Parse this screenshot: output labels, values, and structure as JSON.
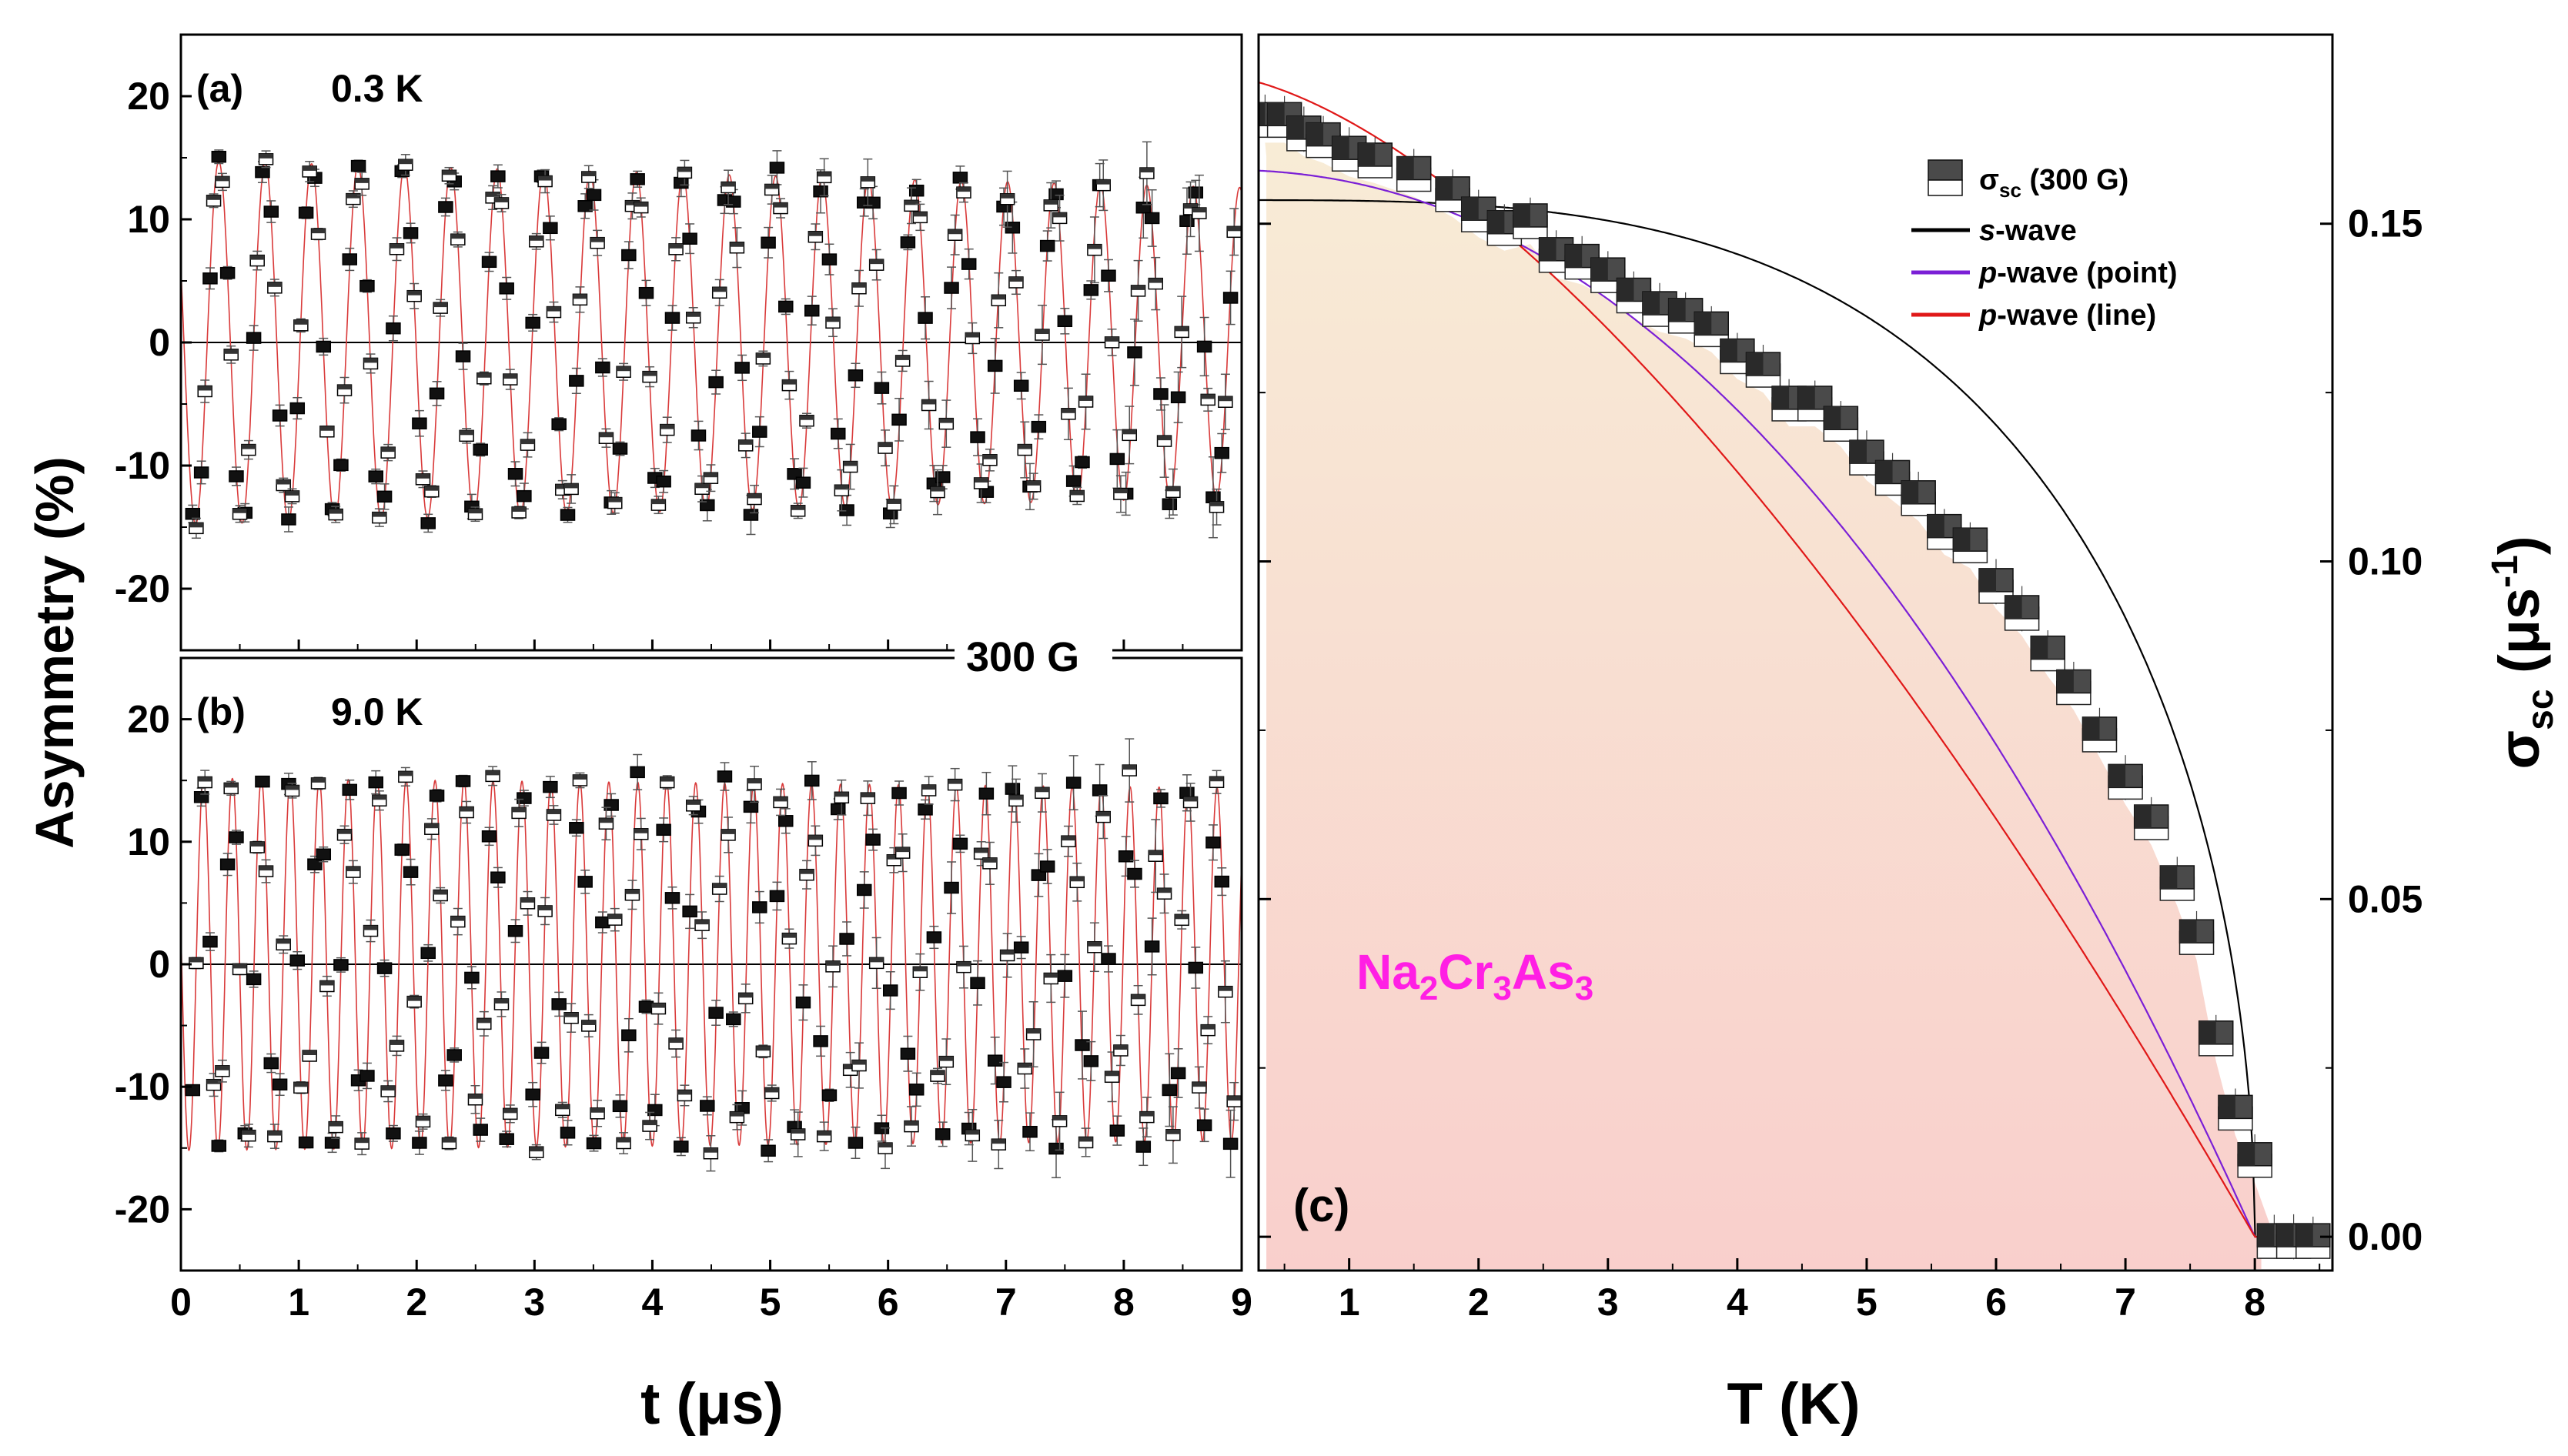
{
  "figure": {
    "shared_label": "300 G",
    "compound": {
      "base": [
        "Na",
        "Cr",
        "As"
      ],
      "subs": [
        "2",
        "3",
        "3"
      ],
      "color": "#ff1fe4"
    }
  },
  "chart_data": [
    {
      "id": "a",
      "type": "scatter",
      "panel_label": "(a)",
      "temperature_label": "0.3 K",
      "xlabel": "t (μs)",
      "ylabel": "Asymmetry (%)",
      "xlim": [
        0,
        9
      ],
      "ylim": [
        -25,
        25
      ],
      "xticks": [
        0,
        1,
        2,
        3,
        4,
        5,
        6,
        7,
        8,
        9
      ],
      "yticks": [
        -20,
        -10,
        0,
        10,
        20
      ],
      "model": {
        "amplitude": 14.8,
        "frequency_MHz": 2.54,
        "phase_deg": 66,
        "relaxation": 0.018
      },
      "series": [
        {
          "name": "data (filled)",
          "marker": "square-filled",
          "t_step": 0.074,
          "t_start": 0.1,
          "n": 120
        },
        {
          "name": "data (open)",
          "marker": "square-open",
          "t_step": 0.074,
          "t_start": 0.13,
          "n": 120
        },
        {
          "name": "fit",
          "style": "line",
          "color": "#d93a3a"
        }
      ]
    },
    {
      "id": "b",
      "type": "scatter",
      "panel_label": "(b)",
      "temperature_label": "9.0 K",
      "xlabel": "t (μs)",
      "ylabel": "Asymmetry (%)",
      "xlim": [
        0,
        9
      ],
      "ylim": [
        -25,
        25
      ],
      "xticks": [
        0,
        1,
        2,
        3,
        4,
        5,
        6,
        7,
        8,
        9
      ],
      "yticks": [
        -20,
        -10,
        0,
        10,
        20
      ],
      "model": {
        "amplitude": 15.2,
        "frequency_MHz": 4.07,
        "phase_deg": 80,
        "relaxation": 0.006
      },
      "series": [
        {
          "name": "data (filled)",
          "marker": "square-filled",
          "t_step": 0.074,
          "t_start": 0.1,
          "n": 120
        },
        {
          "name": "data (open)",
          "marker": "square-open",
          "t_step": 0.074,
          "t_start": 0.13,
          "n": 120
        }
      ]
    },
    {
      "id": "c",
      "type": "scatter",
      "panel_label": "(c)",
      "xlabel": "T (K)",
      "ylabel": "σsc (μs-1)",
      "xlim": [
        0.3,
        8.6
      ],
      "ylim": [
        -0.005,
        0.178
      ],
      "xticks": [
        1,
        2,
        3,
        4,
        5,
        6,
        7,
        8
      ],
      "yticks": [
        0.0,
        0.05,
        0.1,
        0.15
      ],
      "ytick_labels": [
        "0.00",
        "0.05",
        "0.10",
        "0.15"
      ],
      "legend_position": "top-right",
      "series": [
        {
          "name": "σsc (300 G)",
          "legend_main": "σ",
          "legend_sub": "sc",
          "legend_rest": " (300 G)",
          "marker": "square-shaded",
          "T": [
            0.35,
            0.5,
            0.65,
            0.8,
            1.0,
            1.2,
            1.5,
            1.8,
            2.0,
            2.2,
            2.4,
            2.6,
            2.8,
            3.0,
            3.2,
            3.4,
            3.6,
            3.8,
            4.0,
            4.2,
            4.4,
            4.6,
            4.8,
            5.0,
            5.2,
            5.4,
            5.6,
            5.8,
            6.0,
            6.2,
            6.4,
            6.6,
            6.8,
            7.0,
            7.2,
            7.4,
            7.55,
            7.7,
            7.85,
            8.0,
            8.15,
            8.3,
            8.45
          ],
          "sigma": [
            0.166,
            0.166,
            0.164,
            0.163,
            0.161,
            0.16,
            0.158,
            0.155,
            0.152,
            0.15,
            0.151,
            0.146,
            0.145,
            0.143,
            0.14,
            0.138,
            0.137,
            0.135,
            0.131,
            0.129,
            0.124,
            0.124,
            0.121,
            0.116,
            0.113,
            0.11,
            0.105,
            0.103,
            0.097,
            0.093,
            0.087,
            0.082,
            0.075,
            0.068,
            0.062,
            0.053,
            0.045,
            0.03,
            0.019,
            0.012,
            0.0,
            0.0,
            0.0
          ]
        },
        {
          "name": "s-wave",
          "legend_main": "s",
          "legend_rest": "-wave",
          "style": "line",
          "color": "#000000",
          "sigma0": 0.1535,
          "Tc": 8.0
        },
        {
          "name": "p-wave (point)",
          "legend_main": "p",
          "legend_rest": "-wave (point)",
          "style": "line",
          "color": "#7b1fd6",
          "sigma0": 0.158,
          "Tc": 8.0
        },
        {
          "name": "p-wave (line)",
          "legend_main": "p",
          "legend_rest": "-wave (line)",
          "style": "line",
          "color": "#e01818",
          "sigma0": 0.172,
          "Tc": 8.0
        }
      ]
    }
  ]
}
